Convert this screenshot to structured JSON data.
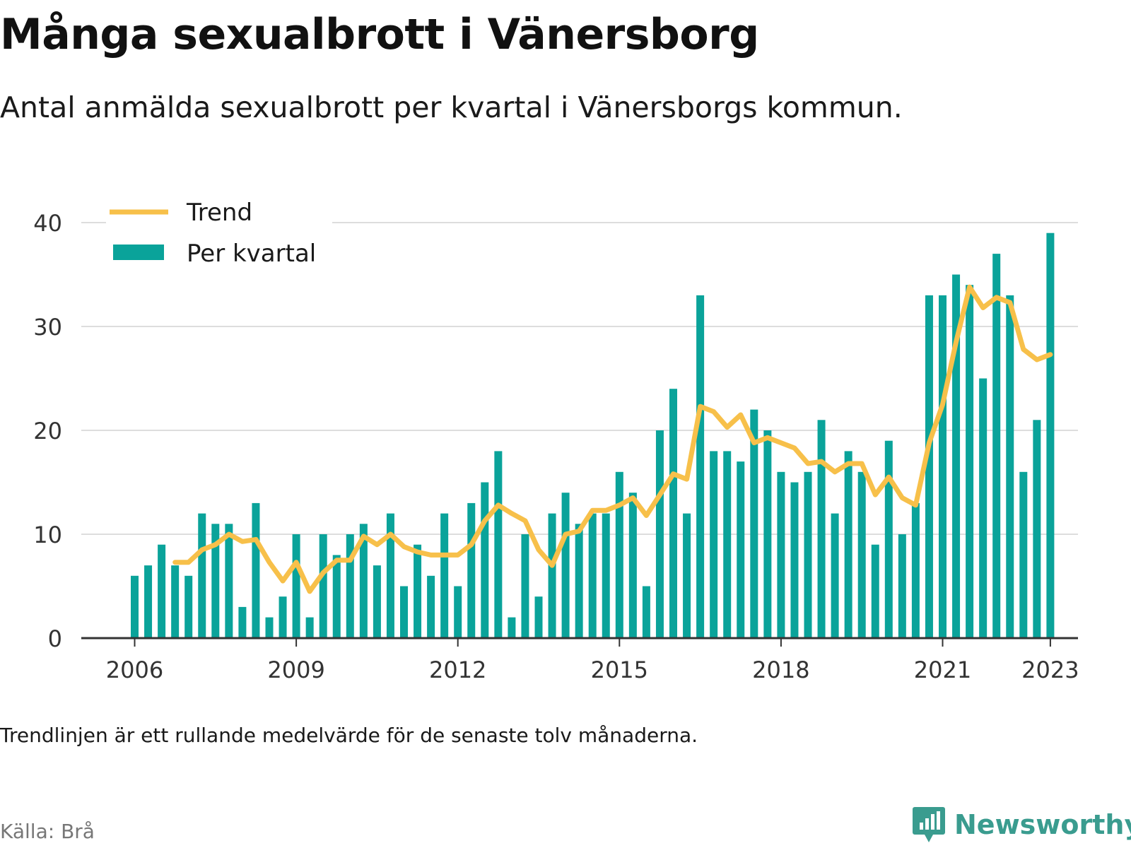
{
  "title": "Många sexualbrott i Vänersborg",
  "subtitle": "Antal anmälda sexualbrott per kvartal i Vänersborgs kommun.",
  "note": "Trendlinjen är ett rullande medelvärde för de senaste tolv månaderna.",
  "source": "Källa: Brå",
  "brand": {
    "name": "Newsworthy",
    "icon": "bar-chart-speech-bubble-icon"
  },
  "colors": {
    "bars": "#0aa39a",
    "trend": "#f7c04a",
    "grid": "#dddddd",
    "axis": "#333333",
    "brand": "#3a9c8f"
  },
  "chart_data": {
    "type": "bar",
    "x_tick_labels": [
      "2006",
      "2009",
      "2012",
      "2015",
      "2018",
      "2021",
      "2023"
    ],
    "y_ticks": [
      0,
      10,
      20,
      30,
      40
    ],
    "ylim": [
      0,
      40
    ],
    "grid": "horizontal",
    "legend_position": "top-left",
    "categories": [
      "2006 K1",
      "2006 K2",
      "2006 K3",
      "2006 K4",
      "2007 K1",
      "2007 K2",
      "2007 K3",
      "2007 K4",
      "2008 K1",
      "2008 K2",
      "2008 K3",
      "2008 K4",
      "2009 K1",
      "2009 K2",
      "2009 K3",
      "2009 K4",
      "2010 K1",
      "2010 K2",
      "2010 K3",
      "2010 K4",
      "2011 K1",
      "2011 K2",
      "2011 K3",
      "2011 K4",
      "2012 K1",
      "2012 K2",
      "2012 K3",
      "2012 K4",
      "2013 K1",
      "2013 K2",
      "2013 K3",
      "2013 K4",
      "2014 K1",
      "2014 K2",
      "2014 K3",
      "2014 K4",
      "2015 K1",
      "2015 K2",
      "2015 K3",
      "2015 K4",
      "2016 K1",
      "2016 K2",
      "2016 K3",
      "2016 K4",
      "2017 K1",
      "2017 K2",
      "2017 K3",
      "2017 K4",
      "2018 K1",
      "2018 K2",
      "2018 K3",
      "2018 K4",
      "2019 K1",
      "2019 K2",
      "2019 K3",
      "2019 K4",
      "2020 K1",
      "2020 K2",
      "2020 K3",
      "2020 K4",
      "2021 K1",
      "2021 K2",
      "2021 K3",
      "2021 K4",
      "2022 K1",
      "2022 K2",
      "2022 K3",
      "2022 K4",
      "2023 K1"
    ],
    "series": [
      {
        "name": "Per kvartal",
        "type": "bar",
        "values": [
          6,
          7,
          9,
          7,
          6,
          12,
          11,
          11,
          3,
          13,
          2,
          4,
          10,
          2,
          10,
          8,
          10,
          11,
          7,
          12,
          5,
          9,
          6,
          12,
          5,
          13,
          15,
          18,
          2,
          10,
          4,
          12,
          14,
          11,
          12,
          12,
          16,
          14,
          5,
          20,
          24,
          12,
          33,
          18,
          18,
          17,
          22,
          20,
          16,
          15,
          16,
          21,
          12,
          18,
          16,
          9,
          19,
          10,
          13,
          33,
          33,
          35,
          34,
          25,
          37,
          33,
          16,
          21,
          39
        ]
      },
      {
        "name": "Trend",
        "type": "line",
        "values": [
          null,
          null,
          null,
          7.3,
          7.3,
          8.5,
          9.0,
          10.0,
          9.3,
          9.5,
          7.3,
          5.5,
          7.3,
          4.5,
          6.3,
          7.5,
          7.5,
          9.8,
          9.0,
          10.0,
          8.8,
          8.3,
          8.0,
          8.0,
          8.0,
          9.0,
          11.3,
          12.8,
          12.0,
          11.3,
          8.5,
          7.0,
          10.0,
          10.3,
          12.3,
          12.3,
          12.8,
          13.5,
          11.8,
          13.8,
          15.8,
          15.3,
          22.3,
          21.8,
          20.3,
          21.5,
          18.8,
          19.3,
          18.8,
          18.3,
          16.8,
          17.0,
          16.0,
          16.8,
          16.8,
          13.8,
          15.5,
          13.5,
          12.8,
          18.8,
          22.5,
          28.5,
          33.8,
          31.8,
          32.8,
          32.3,
          27.8,
          26.8,
          27.3
        ]
      }
    ]
  }
}
